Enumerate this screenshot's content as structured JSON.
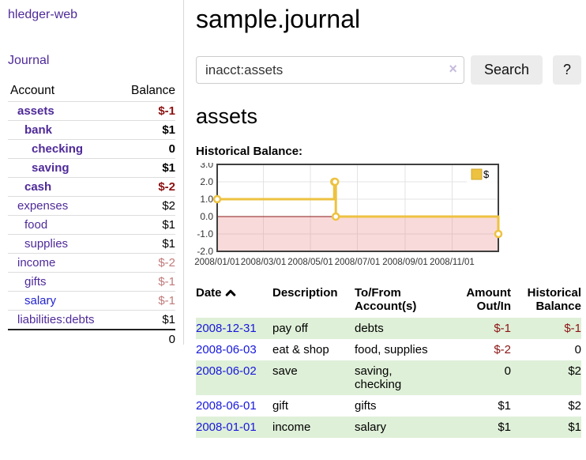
{
  "sidebar": {
    "app_title": "hledger-web",
    "nav": {
      "journal": "Journal"
    },
    "table": {
      "headers": {
        "account": "Account",
        "balance": "Balance"
      },
      "rows": [
        {
          "label": "assets",
          "level": 1,
          "bold": true,
          "link_color": "purple",
          "balance": "$-1",
          "balance_style": "neg-strong"
        },
        {
          "label": "bank",
          "level": 2,
          "bold": true,
          "link_color": "purple",
          "balance": "$1",
          "balance_style": ""
        },
        {
          "label": "checking",
          "level": 3,
          "bold": true,
          "link_color": "purple",
          "balance": "0",
          "balance_style": ""
        },
        {
          "label": "saving",
          "level": 3,
          "bold": true,
          "link_color": "purple",
          "balance": "$1",
          "balance_style": ""
        },
        {
          "label": "cash",
          "level": 2,
          "bold": true,
          "link_color": "purple",
          "balance": "$-2",
          "balance_style": "neg-strong"
        },
        {
          "label": "expenses",
          "level": 1,
          "bold": false,
          "link_color": "purple",
          "balance": "$2",
          "balance_style": ""
        },
        {
          "label": "food",
          "level": 2,
          "bold": false,
          "link_color": "purple",
          "balance": "$1",
          "balance_style": ""
        },
        {
          "label": "supplies",
          "level": 2,
          "bold": false,
          "link_color": "purple",
          "balance": "$1",
          "balance_style": ""
        },
        {
          "label": "income",
          "level": 1,
          "bold": false,
          "link_color": "purple",
          "balance": "$-2",
          "balance_style": "neg-soft"
        },
        {
          "label": "gifts",
          "level": 2,
          "bold": false,
          "link_color": "purple",
          "balance": "$-1",
          "balance_style": "neg-soft"
        },
        {
          "label": "salary",
          "level": 2,
          "bold": false,
          "link_color": "blue",
          "balance": "$-1",
          "balance_style": "neg-soft"
        },
        {
          "label": "liabilities:debts",
          "level": 1,
          "bold": false,
          "link_color": "purple",
          "balance": "$1",
          "balance_style": ""
        }
      ],
      "total": "0"
    }
  },
  "header": {
    "title": "sample.journal"
  },
  "search": {
    "value": "inacct:assets",
    "button": "Search",
    "help_button": "?"
  },
  "icons": {
    "clear_search": "×",
    "sort_ascending": "∧"
  },
  "account_page": {
    "heading": "assets",
    "chart_label": "Historical Balance:"
  },
  "chart_data": {
    "type": "line",
    "title": "Historical Balance:",
    "step": true,
    "series": [
      {
        "name": "$",
        "color": "#edc240",
        "points": [
          {
            "date": "2008-01-01",
            "value": 1
          },
          {
            "date": "2008-06-01",
            "value": 2
          },
          {
            "date": "2008-06-02",
            "value": 2
          },
          {
            "date": "2008-06-03",
            "value": 0
          },
          {
            "date": "2008-12-31",
            "value": -1
          }
        ]
      }
    ],
    "x_range": [
      "2008-01-01",
      "2008-12-31"
    ],
    "x_tick_labels": [
      "2008/01/01",
      "2008/03/01",
      "2008/05/01",
      "2008/07/01",
      "2008/09/01",
      "2008/11/01"
    ],
    "y_tick_labels": [
      "3.0",
      "2.0",
      "1.0",
      "0.0",
      "-1.0",
      "-2.0"
    ],
    "ylim": [
      -2,
      3
    ],
    "grid": true,
    "legend": {
      "label": "$",
      "position": "top-right"
    },
    "zero_line_color": "#8b1a1a",
    "negative_region": true
  },
  "journal": {
    "columns": {
      "date": "Date",
      "description": "Description",
      "accounts": "To/From Account(s)",
      "amount": "Amount Out/In",
      "balance": "Historical Balance"
    },
    "rows": [
      {
        "date": "2008-12-31",
        "description": "pay off",
        "accounts": "debts",
        "amount": "$-1",
        "amount_style": "neg",
        "balance": "$-1",
        "balance_style": "neg"
      },
      {
        "date": "2008-06-03",
        "description": "eat & shop",
        "accounts": "food, supplies",
        "amount": "$-2",
        "amount_style": "neg",
        "balance": "0",
        "balance_style": ""
      },
      {
        "date": "2008-06-02",
        "description": "save",
        "accounts": "saving, checking",
        "amount": "0",
        "amount_style": "",
        "balance": "$2",
        "balance_style": ""
      },
      {
        "date": "2008-06-01",
        "description": "gift",
        "accounts": "gifts",
        "amount": "$1",
        "amount_style": "",
        "balance": "$2",
        "balance_style": ""
      },
      {
        "date": "2008-01-01",
        "description": "income",
        "accounts": "salary",
        "amount": "$1",
        "amount_style": "",
        "balance": "$1",
        "balance_style": ""
      }
    ]
  },
  "colors": {
    "link_purple": "#4f2a99",
    "link_blue": "#1717dd",
    "negative_strong": "#8b1111",
    "negative_soft": "#c17a7a",
    "row_shade_green": "#dff0d8",
    "series_yellow": "#edc240",
    "zero_line": "#8b1a1a",
    "chart_border": "#3f3f3f"
  }
}
